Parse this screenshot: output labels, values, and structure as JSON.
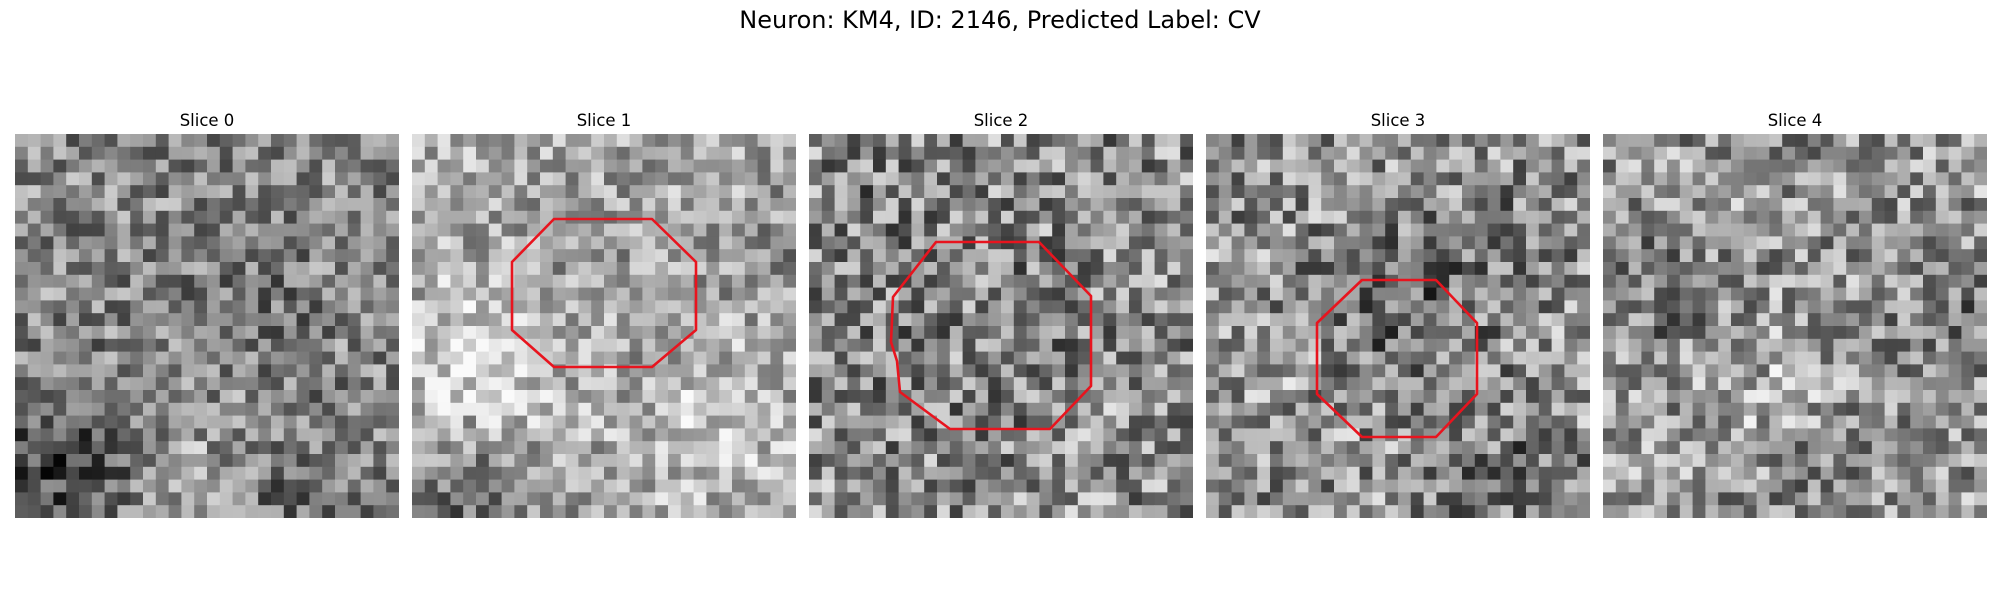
{
  "figure": {
    "title": "Neuron: KM4, ID: 2146, Predicted Label: CV"
  },
  "colors": {
    "background": "#ffffff",
    "contour": "#e8141e",
    "title_text": "#000000"
  },
  "colormap": "grayscale",
  "slices": [
    {
      "title": "Slice 0",
      "has_contour": false
    },
    {
      "title": "Slice 1",
      "has_contour": true
    },
    {
      "title": "Slice 2",
      "has_contour": true
    },
    {
      "title": "Slice 3",
      "has_contour": true
    },
    {
      "title": "Slice 4",
      "has_contour": false
    }
  ]
}
